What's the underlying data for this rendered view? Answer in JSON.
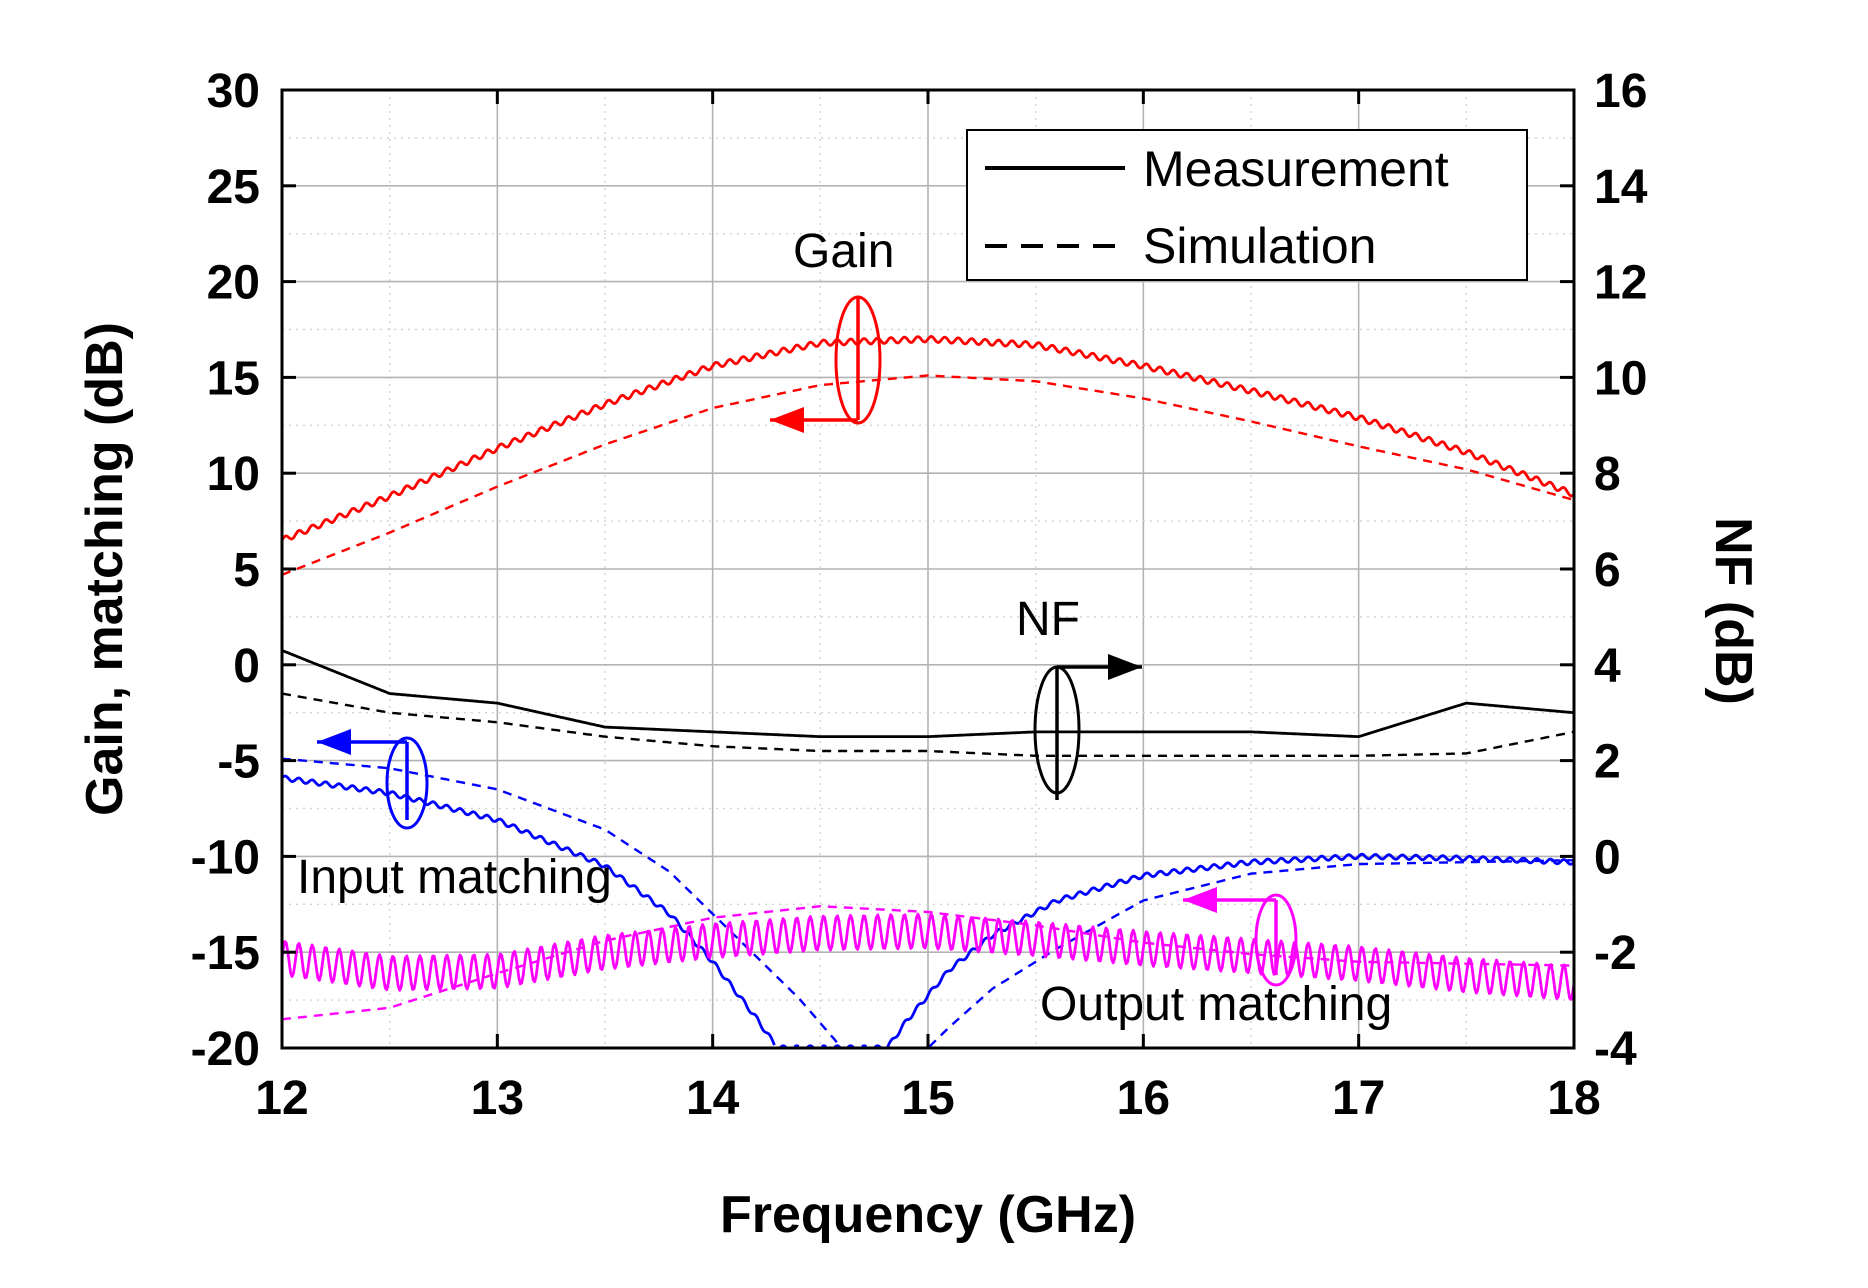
{
  "chart_data": {
    "type": "line",
    "xlabel": "Frequency (GHz)",
    "ylabel": "Gain, matching (dB)",
    "ylabel_right": "NF (dB)",
    "xlim": [
      12,
      18
    ],
    "ylim": [
      -20,
      30
    ],
    "ylim_right": [
      -4,
      16
    ],
    "x_ticks": [
      "12",
      "13",
      "14",
      "15",
      "16",
      "17",
      "18"
    ],
    "y_ticks": [
      "-20",
      "-15",
      "-10",
      "-5",
      "0",
      "5",
      "10",
      "15",
      "20",
      "25",
      "30"
    ],
    "y_ticks_right": [
      "-4",
      "-2",
      "0",
      "2",
      "4",
      "6",
      "8",
      "10",
      "12",
      "14",
      "16"
    ],
    "grid": true,
    "legend": {
      "position": "top-right",
      "entries": [
        {
          "label": "Measurement",
          "style": "solid"
        },
        {
          "label": "Simulation",
          "style": "dashed"
        }
      ]
    },
    "annotations": {
      "gain": "Gain",
      "nf": "NF",
      "input": "Input matching",
      "output": "Output matching"
    },
    "series": [
      {
        "name": "Gain (measured)",
        "axis": "left",
        "color": "#ff0000",
        "style": "solid",
        "ripple": 0.15,
        "x": [
          12,
          12.5,
          13,
          13.5,
          14,
          14.5,
          15,
          15.5,
          16,
          16.5,
          17,
          17.5,
          18
        ],
        "y": [
          6.5,
          8.8,
          11.3,
          13.6,
          15.6,
          16.8,
          17.0,
          16.7,
          15.6,
          14.3,
          12.9,
          11.1,
          8.9
        ]
      },
      {
        "name": "Gain (simulated)",
        "axis": "left",
        "color": "#ff0000",
        "style": "dashed",
        "ripple": 0,
        "x": [
          12,
          12.5,
          13,
          13.5,
          14,
          14.5,
          15,
          15.5,
          16,
          16.5,
          17,
          17.5,
          18
        ],
        "y": [
          4.7,
          6.9,
          9.3,
          11.5,
          13.4,
          14.6,
          15.1,
          14.8,
          13.9,
          12.7,
          11.4,
          10.2,
          8.6
        ]
      },
      {
        "name": "NF (measured)",
        "axis": "right",
        "color": "#000000",
        "style": "solid",
        "ripple": 0,
        "x": [
          12,
          12.5,
          13,
          13.5,
          14,
          14.5,
          15,
          15.5,
          16,
          16.5,
          17,
          17.5,
          18
        ],
        "y": [
          4.3,
          3.4,
          3.2,
          2.7,
          2.6,
          2.5,
          2.5,
          2.6,
          2.6,
          2.6,
          2.5,
          3.2,
          3.0
        ]
      },
      {
        "name": "NF (simulated)",
        "axis": "right",
        "color": "#000000",
        "style": "dashed",
        "ripple": 0,
        "x": [
          12,
          12.5,
          13,
          13.5,
          14,
          14.5,
          15,
          15.5,
          16,
          16.5,
          17,
          17.5,
          18
        ],
        "y": [
          3.4,
          3.0,
          2.8,
          2.5,
          2.3,
          2.2,
          2.2,
          2.1,
          2.1,
          2.1,
          2.1,
          2.15,
          2.6
        ]
      },
      {
        "name": "Input matching (measured)",
        "axis": "left",
        "color": "#0000ff",
        "style": "solid",
        "ripple": 0.12,
        "x": [
          12,
          12.5,
          13,
          13.5,
          13.8,
          14.0,
          14.2,
          14.3,
          14.81,
          14.9,
          15.1,
          15.3,
          15.6,
          16.0,
          16.5,
          17,
          17.5,
          18
        ],
        "y": [
          -5.9,
          -6.7,
          -8.1,
          -10.5,
          -13.0,
          -15.5,
          -18.4,
          -20.0,
          -20.0,
          -18.6,
          -15.9,
          -14.1,
          -12.3,
          -11.0,
          -10.3,
          -10.0,
          -10.1,
          -10.3
        ]
      },
      {
        "name": "Input matching (simulated)",
        "axis": "left",
        "color": "#0000ff",
        "style": "dashed",
        "ripple": 0,
        "x": [
          12,
          12.5,
          13,
          13.5,
          13.8,
          14.0,
          14.2,
          14.4,
          14.6,
          14.58,
          15.0,
          15.1,
          15.3,
          15.6,
          16.0,
          16.5,
          17,
          17.5,
          18
        ],
        "y": [
          -4.9,
          -5.4,
          -6.5,
          -8.6,
          -10.8,
          -13.0,
          -15.2,
          -17.4,
          -20.0,
          -20.0,
          -20.0,
          -18.9,
          -16.9,
          -14.8,
          -12.3,
          -10.9,
          -10.4,
          -10.3,
          -10.2
        ]
      },
      {
        "name": "Output matching (measured)",
        "axis": "left",
        "color": "#ff00ff",
        "style": "solid",
        "ripple": 0.9,
        "x": [
          12,
          12.5,
          13,
          13.5,
          14,
          14.5,
          15,
          15.5,
          16,
          16.5,
          17,
          17.5,
          18
        ],
        "y": [
          -15.3,
          -16.1,
          -16.0,
          -15.0,
          -14.4,
          -14.0,
          -13.9,
          -14.3,
          -14.8,
          -15.2,
          -15.6,
          -16.2,
          -16.6
        ]
      },
      {
        "name": "Output matching (simulated)",
        "axis": "left",
        "color": "#ff00ff",
        "style": "dashed",
        "ripple": 0,
        "x": [
          12,
          12.5,
          13,
          13.5,
          14,
          14.5,
          15,
          15.5,
          16,
          16.5,
          17,
          17.5,
          18
        ],
        "y": [
          -18.5,
          -17.9,
          -16.1,
          -14.4,
          -13.2,
          -12.6,
          -12.9,
          -13.6,
          -14.5,
          -15.1,
          -15.5,
          -15.6,
          -15.7
        ]
      }
    ]
  }
}
